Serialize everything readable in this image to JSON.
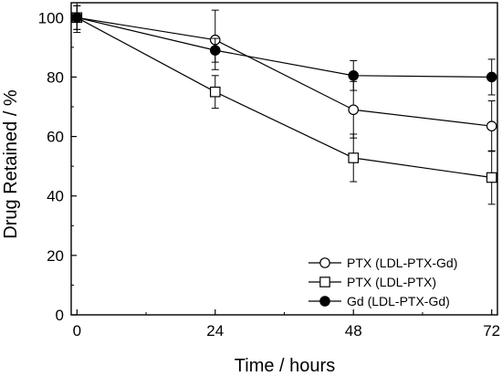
{
  "chart_data": {
    "type": "line",
    "title": "",
    "xlabel": "Time / hours",
    "ylabel": "Drug Retained / %",
    "xlim": [
      -1,
      73
    ],
    "ylim": [
      0,
      105
    ],
    "xticks": [
      0,
      24,
      48,
      72
    ],
    "yticks": [
      0,
      20,
      40,
      60,
      80,
      100
    ],
    "grid": false,
    "legend_position": "bottom-right",
    "series": [
      {
        "name": "PTX (LDL-PTX-Gd)",
        "marker": "circle-open",
        "x": [
          0,
          24,
          48,
          72
        ],
        "y": [
          100,
          92.5,
          69,
          63.5
        ],
        "err": [
          4,
          10,
          9.5,
          8.5
        ]
      },
      {
        "name": "PTX (LDL-PTX)",
        "marker": "square-open",
        "x": [
          0,
          24,
          48,
          72
        ],
        "y": [
          100,
          75,
          52.8,
          46.2
        ],
        "err": [
          5,
          5.5,
          8,
          9
        ]
      },
      {
        "name": "Gd (LDL-PTX-Gd)",
        "marker": "circle-filled",
        "x": [
          0,
          24,
          48,
          72
        ],
        "y": [
          100,
          89,
          80.5,
          80
        ],
        "err": [
          4,
          4,
          5,
          6
        ]
      }
    ]
  }
}
